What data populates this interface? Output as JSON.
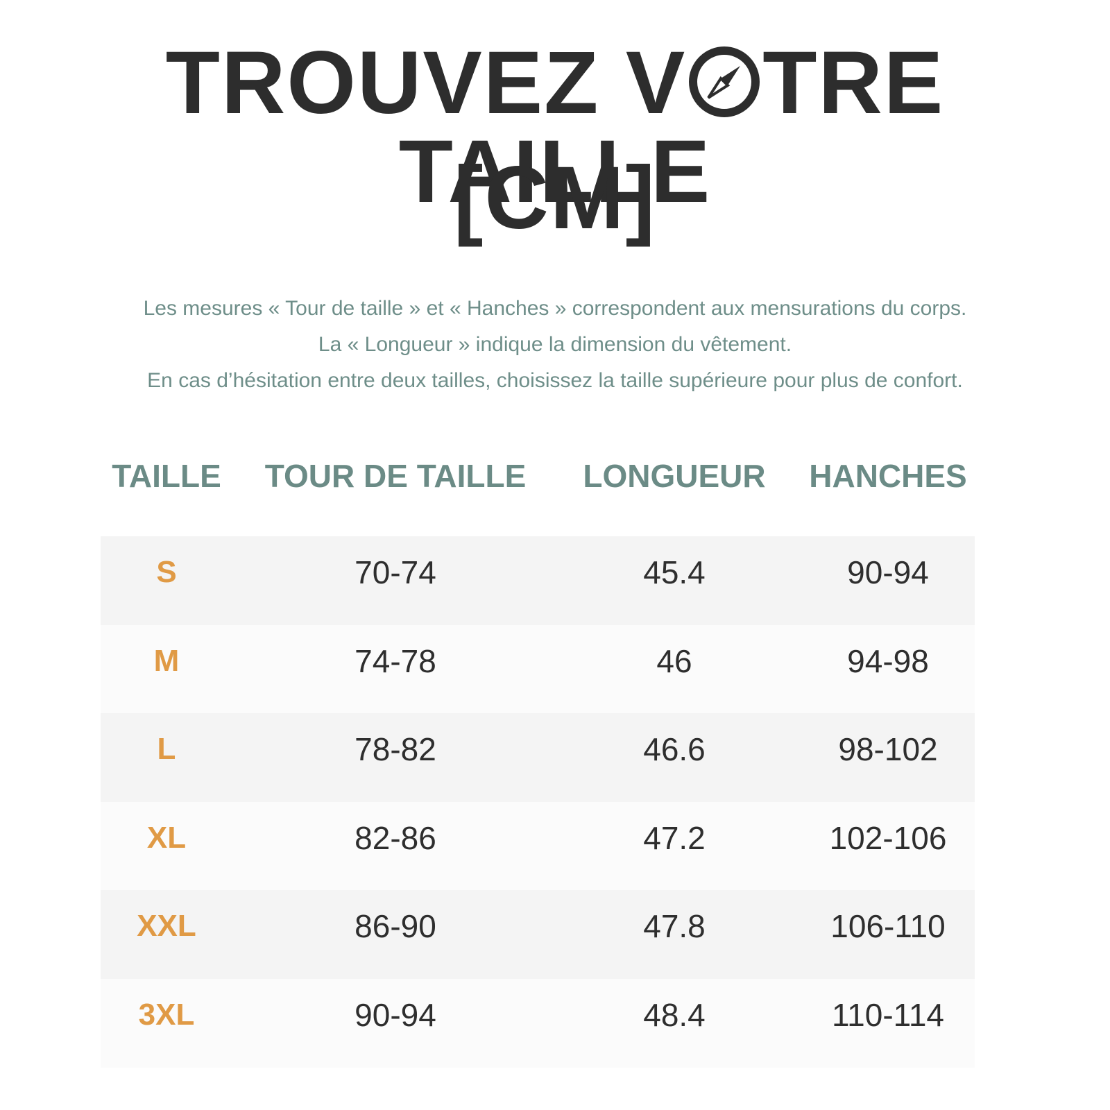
{
  "header": {
    "title_start": "TROUVEZ V",
    "title_end": "TRE TAILLE",
    "unit": "[CM]"
  },
  "description": [
    "Les mesures « Tour de taille » et « Hanches » correspondent aux mensurations du corps.",
    "La « Longueur » indique la dimension du vêtement.",
    "En cas d’hésitation entre deux tailles, choisissez la taille supérieure pour plus de confort."
  ],
  "table": {
    "columns": [
      "TAILLE",
      "TOUR DE TAILLE",
      "LONGUEUR",
      "HANCHES"
    ],
    "rows": [
      [
        "S",
        "70-74",
        "45.4",
        "90-94"
      ],
      [
        "M",
        "74-78",
        "46",
        "94-98"
      ],
      [
        "L",
        "78-82",
        "46.6",
        "98-102"
      ],
      [
        "XL",
        "82-86",
        "47.2",
        "102-106"
      ],
      [
        "XXL",
        "86-90",
        "47.8",
        "106-110"
      ],
      [
        "3XL",
        "90-94",
        "48.4",
        "110-114"
      ]
    ]
  }
}
